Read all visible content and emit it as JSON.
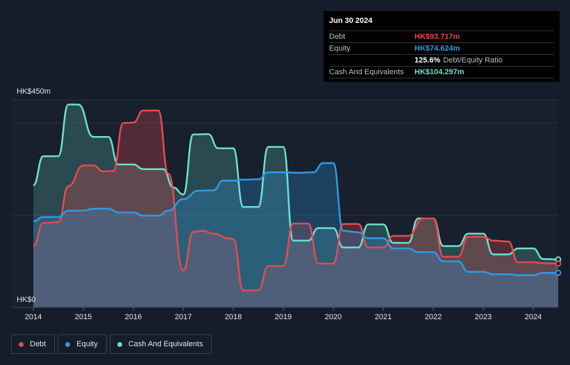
{
  "tooltip": {
    "date": "Jun 30 2024",
    "debt_label": "Debt",
    "debt_value": "HK$93.717m",
    "equity_label": "Equity",
    "equity_value": "HK$74.624m",
    "ratio_value": "125.6%",
    "ratio_label": "Debt/Equity Ratio",
    "cash_label": "Cash And Equivalents",
    "cash_value": "HK$104.297m"
  },
  "legend": [
    {
      "label": "Debt",
      "color": "#e64a4f"
    },
    {
      "label": "Equity",
      "color": "#2e9be6"
    },
    {
      "label": "Cash And Equivalents",
      "color": "#6de0cc"
    }
  ],
  "colors": {
    "debt": "#e64a4f",
    "equity": "#2e9be6",
    "cash": "#6de0cc",
    "background": "#151c2a"
  },
  "chart_data": {
    "type": "area",
    "ylabel_top": "HK$450m",
    "ylabel_bottom": "HK$0",
    "ylim": [
      0,
      450
    ],
    "xlim": [
      2014.0,
      2024.5
    ],
    "x_ticks": [
      2014,
      2015,
      2016,
      2017,
      2018,
      2019,
      2020,
      2021,
      2022,
      2023,
      2024
    ],
    "x_tick_labels": [
      "2014",
      "2015",
      "2016",
      "2017",
      "2018",
      "2019",
      "2020",
      "2021",
      "2022",
      "2023",
      "2024"
    ],
    "grid": true,
    "legend_position": "bottom-left",
    "series": [
      {
        "name": "Debt",
        "color": "#e64a4f",
        "points": [
          [
            2014.0,
            133
          ],
          [
            2014.2,
            183
          ],
          [
            2014.5,
            185
          ],
          [
            2014.7,
            263
          ],
          [
            2015.0,
            308
          ],
          [
            2015.2,
            308
          ],
          [
            2015.4,
            295
          ],
          [
            2015.6,
            296
          ],
          [
            2015.8,
            400
          ],
          [
            2016.0,
            401
          ],
          [
            2016.2,
            427
          ],
          [
            2016.5,
            427
          ],
          [
            2016.7,
            290
          ],
          [
            2017.0,
            80
          ],
          [
            2017.2,
            164
          ],
          [
            2017.4,
            166
          ],
          [
            2017.6,
            160
          ],
          [
            2017.9,
            150
          ],
          [
            2018.0,
            148
          ],
          [
            2018.2,
            37
          ],
          [
            2018.5,
            37
          ],
          [
            2018.7,
            90
          ],
          [
            2019.0,
            90
          ],
          [
            2019.2,
            182
          ],
          [
            2019.5,
            182
          ],
          [
            2019.7,
            95
          ],
          [
            2020.0,
            95
          ],
          [
            2020.2,
            181
          ],
          [
            2020.5,
            181
          ],
          [
            2020.7,
            130
          ],
          [
            2021.0,
            130
          ],
          [
            2021.2,
            155
          ],
          [
            2021.5,
            155
          ],
          [
            2021.8,
            193
          ],
          [
            2022.0,
            193
          ],
          [
            2022.2,
            110
          ],
          [
            2022.5,
            110
          ],
          [
            2022.7,
            153
          ],
          [
            2023.0,
            153
          ],
          [
            2023.2,
            145
          ],
          [
            2023.5,
            143
          ],
          [
            2023.7,
            98
          ],
          [
            2024.0,
            98
          ],
          [
            2024.2,
            96
          ],
          [
            2024.5,
            95
          ]
        ]
      },
      {
        "name": "Equity",
        "color": "#2e9be6",
        "points": [
          [
            2014.0,
            187
          ],
          [
            2014.2,
            196
          ],
          [
            2014.5,
            196
          ],
          [
            2014.7,
            210
          ],
          [
            2015.0,
            210
          ],
          [
            2015.2,
            214
          ],
          [
            2015.5,
            214
          ],
          [
            2015.7,
            206
          ],
          [
            2016.0,
            206
          ],
          [
            2016.2,
            199
          ],
          [
            2016.5,
            199
          ],
          [
            2016.7,
            210
          ],
          [
            2017.0,
            235
          ],
          [
            2017.3,
            253
          ],
          [
            2017.6,
            254
          ],
          [
            2017.8,
            275
          ],
          [
            2018.0,
            275
          ],
          [
            2018.2,
            277
          ],
          [
            2018.5,
            278
          ],
          [
            2018.7,
            293
          ],
          [
            2019.0,
            293
          ],
          [
            2019.3,
            292
          ],
          [
            2019.6,
            293
          ],
          [
            2019.8,
            313
          ],
          [
            2020.0,
            313
          ],
          [
            2020.2,
            166
          ],
          [
            2020.5,
            163
          ],
          [
            2020.7,
            150
          ],
          [
            2021.0,
            150
          ],
          [
            2021.2,
            128
          ],
          [
            2021.5,
            128
          ],
          [
            2021.7,
            120
          ],
          [
            2022.0,
            120
          ],
          [
            2022.2,
            100
          ],
          [
            2022.5,
            100
          ],
          [
            2022.7,
            77
          ],
          [
            2023.0,
            77
          ],
          [
            2023.2,
            72
          ],
          [
            2023.5,
            72
          ],
          [
            2023.7,
            70
          ],
          [
            2024.0,
            70
          ],
          [
            2024.2,
            75
          ],
          [
            2024.5,
            75
          ]
        ]
      },
      {
        "name": "Cash And Equivalents",
        "color": "#6de0cc",
        "points": [
          [
            2014.0,
            265
          ],
          [
            2014.2,
            328
          ],
          [
            2014.5,
            328
          ],
          [
            2014.7,
            440
          ],
          [
            2014.9,
            440
          ],
          [
            2015.2,
            370
          ],
          [
            2015.5,
            370
          ],
          [
            2015.7,
            310
          ],
          [
            2016.0,
            310
          ],
          [
            2016.2,
            300
          ],
          [
            2016.6,
            300
          ],
          [
            2016.8,
            260
          ],
          [
            2017.0,
            245
          ],
          [
            2017.2,
            375
          ],
          [
            2017.5,
            376
          ],
          [
            2017.7,
            345
          ],
          [
            2018.0,
            345
          ],
          [
            2018.2,
            218
          ],
          [
            2018.5,
            218
          ],
          [
            2018.7,
            348
          ],
          [
            2019.0,
            348
          ],
          [
            2019.2,
            145
          ],
          [
            2019.5,
            145
          ],
          [
            2019.7,
            172
          ],
          [
            2020.0,
            172
          ],
          [
            2020.2,
            130
          ],
          [
            2020.5,
            130
          ],
          [
            2020.7,
            180
          ],
          [
            2021.0,
            180
          ],
          [
            2021.2,
            140
          ],
          [
            2021.5,
            140
          ],
          [
            2021.7,
            193
          ],
          [
            2022.0,
            193
          ],
          [
            2022.2,
            133
          ],
          [
            2022.5,
            133
          ],
          [
            2022.7,
            160
          ],
          [
            2023.0,
            160
          ],
          [
            2023.2,
            115
          ],
          [
            2023.5,
            115
          ],
          [
            2023.7,
            128
          ],
          [
            2024.0,
            128
          ],
          [
            2024.2,
            105
          ],
          [
            2024.5,
            104
          ]
        ]
      }
    ]
  }
}
